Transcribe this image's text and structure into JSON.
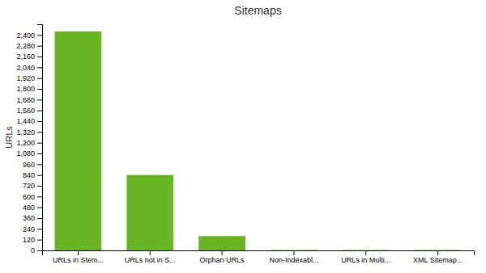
{
  "chart_data": {
    "type": "bar",
    "title": "Sitemaps",
    "categories": [
      "URLs in Stem...",
      "URLs not in S...",
      "Orphan URLs",
      "Non-Indexabl...",
      "URLs in Multi...",
      "XML Sitemap..."
    ],
    "values": [
      2440,
      840,
      160,
      3,
      3,
      3
    ],
    "color": "#6ab526",
    "ylabel": "URLs",
    "ylim": [
      0,
      2520
    ],
    "yticks": [
      0,
      120,
      240,
      360,
      480,
      600,
      720,
      840,
      960,
      {
        "value": 1080,
        "label": "1,080"
      },
      {
        "value": 1200,
        "label": "1,200"
      },
      {
        "value": 1320,
        "label": "1,320"
      },
      {
        "value": 1440,
        "label": "1,440"
      },
      {
        "value": 1560,
        "label": "1,560"
      },
      {
        "value": 1680,
        "label": "1,680"
      },
      {
        "value": 1800,
        "label": "1,800"
      },
      {
        "value": 1920,
        "label": "1,920"
      },
      {
        "value": 2040,
        "label": "2,040"
      },
      {
        "value": 2160,
        "label": "2,160"
      },
      {
        "value": 2280,
        "label": "2,280"
      },
      {
        "value": 2400,
        "label": "2,400"
      }
    ],
    "grid": false
  }
}
